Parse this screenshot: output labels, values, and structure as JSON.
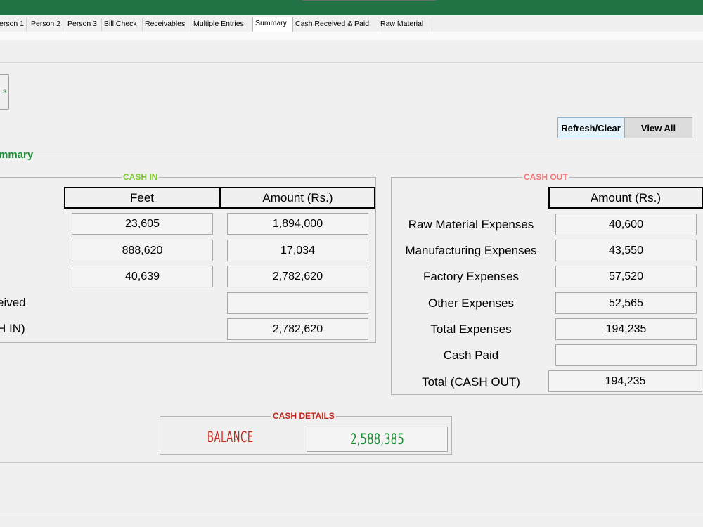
{
  "tabs": [
    {
      "label": "erson 1"
    },
    {
      "label": "Person 2"
    },
    {
      "label": "Person 3"
    },
    {
      "label": "Bill Check"
    },
    {
      "label": "Receivables"
    },
    {
      "label": "Multiple Entries"
    },
    {
      "label": "Summary",
      "active": true
    },
    {
      "label": "Cash Received & Paid"
    },
    {
      "label": "Raw Material"
    }
  ],
  "toolbar": {
    "refresh_label": "Refresh/Clear",
    "view_all_label": "View All"
  },
  "summary": {
    "title": "mmary"
  },
  "cash_in": {
    "legend": "CASH IN",
    "header_feet": "Feet",
    "header_amount": "Amount (Rs.)",
    "rows": [
      {
        "feet": "23,605",
        "amount": "1,894,000"
      },
      {
        "feet": "888,620",
        "amount": "17,034"
      },
      {
        "feet": "40,639",
        "amount": "2,782,620"
      }
    ],
    "received_label": "eived",
    "received_value": "",
    "total_label": "H IN)",
    "total_value": "2,782,620"
  },
  "cash_out": {
    "legend": "CASH OUT",
    "header_amount": "Amount (Rs.)",
    "rows": [
      {
        "label": "Raw Material Expenses",
        "value": "40,600"
      },
      {
        "label": "Manufacturing Expenses",
        "value": "43,550"
      },
      {
        "label": "Factory Expenses",
        "value": "57,520"
      },
      {
        "label": "Other Expenses",
        "value": "52,565"
      },
      {
        "label": "Total Expenses",
        "value": "194,235"
      },
      {
        "label": "Cash Paid",
        "value": ""
      }
    ],
    "total_label": "Total (CASH OUT)",
    "total_value": "194,235"
  },
  "cash_details": {
    "legend": "CASH DETAILS",
    "balance_label": "BALANCE",
    "balance_value": "2,588,385"
  },
  "colors": {
    "ribbon": "#217346",
    "accent_green": "#1e8c35",
    "cash_in_legend": "#7dc832",
    "cash_out_legend": "#f07878",
    "details_legend": "#c4281b"
  }
}
